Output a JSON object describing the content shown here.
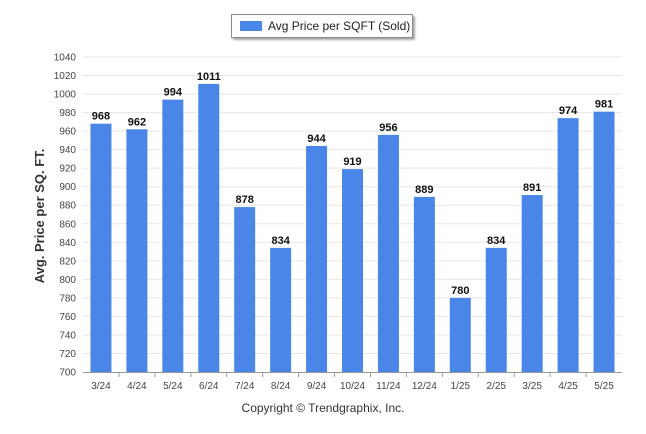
{
  "chart_data": {
    "type": "bar",
    "legend": [
      "Avg Price per SQFT (Sold)"
    ],
    "ylabel": "Avg. Price per SQ. FT.",
    "xlabel": "",
    "ylim": [
      700,
      1040
    ],
    "yticks": [
      700,
      720,
      740,
      760,
      780,
      800,
      820,
      840,
      860,
      880,
      900,
      920,
      940,
      960,
      980,
      1000,
      1020,
      1040
    ],
    "categories": [
      "3/24",
      "4/24",
      "5/24",
      "6/24",
      "7/24",
      "8/24",
      "9/24",
      "10/24",
      "11/24",
      "12/24",
      "1/25",
      "2/25",
      "3/25",
      "4/25",
      "5/25"
    ],
    "series": [
      {
        "name": "Avg Price per SQFT (Sold)",
        "values": [
          968,
          962,
          994,
          1011,
          878,
          834,
          944,
          919,
          956,
          889,
          780,
          834,
          891,
          974,
          981
        ]
      }
    ],
    "grid": true,
    "legend_position": "top-center",
    "bar_color": "#4a86e8"
  },
  "footer": {
    "copyright": "Copyright © Trendgraphix, Inc."
  }
}
